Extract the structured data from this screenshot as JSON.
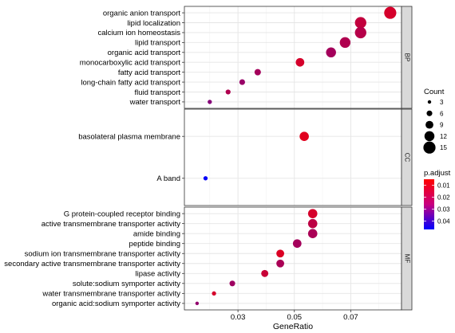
{
  "chart_data": {
    "type": "scatter",
    "xlabel": "GeneRatio",
    "x_ticks": [
      0.03,
      0.05,
      0.07
    ],
    "xlim": [
      0.011,
      0.088
    ],
    "panels": [
      {
        "strip": "BP",
        "points": [
          {
            "term": "organic anion transport",
            "gene_ratio": 0.084,
            "count": 15,
            "p_adjust": 0.012
          },
          {
            "term": "lipid localization",
            "gene_ratio": 0.0735,
            "count": 14,
            "p_adjust": 0.015
          },
          {
            "term": "calcium ion homeostasis",
            "gene_ratio": 0.0735,
            "count": 14,
            "p_adjust": 0.017
          },
          {
            "term": "lipid transport",
            "gene_ratio": 0.068,
            "count": 13,
            "p_adjust": 0.018
          },
          {
            "term": "organic acid transport",
            "gene_ratio": 0.063,
            "count": 12,
            "p_adjust": 0.02
          },
          {
            "term": "monocarboxylic acid transport",
            "gene_ratio": 0.052,
            "count": 10,
            "p_adjust": 0.012
          },
          {
            "term": "fatty acid transport",
            "gene_ratio": 0.037,
            "count": 7,
            "p_adjust": 0.02
          },
          {
            "term": "long-chain fatty acid transport",
            "gene_ratio": 0.0315,
            "count": 6,
            "p_adjust": 0.022
          },
          {
            "term": "fluid transport",
            "gene_ratio": 0.0265,
            "count": 5,
            "p_adjust": 0.018
          },
          {
            "term": "water transport",
            "gene_ratio": 0.02,
            "count": 4,
            "p_adjust": 0.025
          }
        ]
      },
      {
        "strip": "CC",
        "points": [
          {
            "term": "basolateral plasma membrane",
            "gene_ratio": 0.0535,
            "count": 11,
            "p_adjust": 0.01
          },
          {
            "term": "A band",
            "gene_ratio": 0.0185,
            "count": 4,
            "p_adjust": 0.046
          }
        ]
      },
      {
        "strip": "MF",
        "points": [
          {
            "term": "G protein-coupled receptor binding",
            "gene_ratio": 0.0565,
            "count": 11,
            "p_adjust": 0.012
          },
          {
            "term": "active transmembrane transporter activity",
            "gene_ratio": 0.0565,
            "count": 11,
            "p_adjust": 0.016
          },
          {
            "term": "amide binding",
            "gene_ratio": 0.0565,
            "count": 11,
            "p_adjust": 0.019
          },
          {
            "term": "peptide binding",
            "gene_ratio": 0.051,
            "count": 10,
            "p_adjust": 0.02
          },
          {
            "term": "sodium ion transmembrane transporter activity",
            "gene_ratio": 0.045,
            "count": 9,
            "p_adjust": 0.011
          },
          {
            "term": "secondary active transmembrane transporter activity",
            "gene_ratio": 0.045,
            "count": 9,
            "p_adjust": 0.019
          },
          {
            "term": "lipase activity",
            "gene_ratio": 0.0395,
            "count": 8,
            "p_adjust": 0.014
          },
          {
            "term": "solute:sodium symporter activity",
            "gene_ratio": 0.028,
            "count": 6,
            "p_adjust": 0.021
          },
          {
            "term": "water transmembrane transporter activity",
            "gene_ratio": 0.0215,
            "count": 4,
            "p_adjust": 0.012
          },
          {
            "term": "organic acid:sodium symporter activity",
            "gene_ratio": 0.0155,
            "count": 3,
            "p_adjust": 0.023
          }
        ]
      }
    ],
    "legend_size": {
      "title": "Count",
      "values": [
        3,
        6,
        9,
        12,
        15
      ]
    },
    "legend_color": {
      "title": "p.adjust",
      "ticks": [
        0.01,
        0.02,
        0.03,
        0.04
      ],
      "range": [
        0.005,
        0.047
      ],
      "low_color": "#ff0000",
      "high_color": "#0000ff"
    },
    "grid": true,
    "legend_position": "right"
  }
}
